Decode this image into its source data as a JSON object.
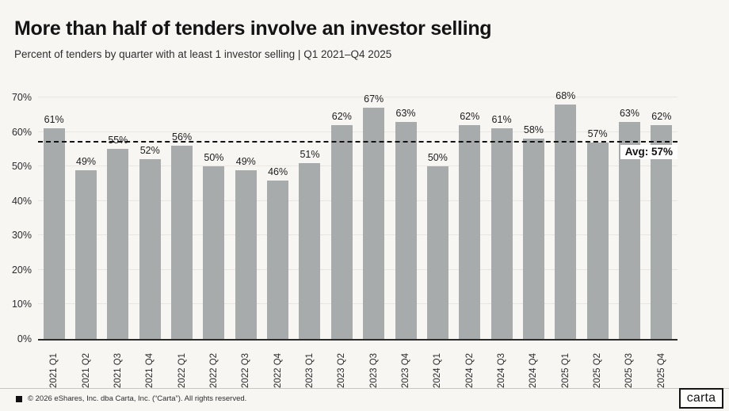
{
  "header": {
    "title": "More than half of tenders involve an investor selling",
    "subtitle": "Percent of tenders by quarter with at least 1 investor selling | Q1 2021–Q4 2025"
  },
  "chart_data": {
    "type": "bar",
    "title": "More than half of tenders involve an investor selling",
    "subtitle": "Percent of tenders by quarter with at least 1 investor selling | Q1 2021–Q4 2025",
    "categories": [
      "2021 Q1",
      "2021 Q2",
      "2021 Q3",
      "2021 Q4",
      "2022 Q1",
      "2022 Q2",
      "2022 Q3",
      "2022 Q4",
      "2023 Q1",
      "2023 Q2",
      "2023 Q3",
      "2023 Q4",
      "2024 Q1",
      "2024 Q2",
      "2024 Q3",
      "2024 Q4",
      "2025 Q1",
      "2025 Q2",
      "2025 Q3",
      "2025 Q4"
    ],
    "values": [
      61,
      49,
      55,
      52,
      56,
      50,
      49,
      46,
      51,
      62,
      67,
      63,
      50,
      62,
      61,
      58,
      68,
      57,
      63,
      62
    ],
    "value_suffix": "%",
    "xlabel": "",
    "ylabel": "",
    "ylim": [
      0,
      70
    ],
    "yticks": [
      0,
      10,
      20,
      30,
      40,
      50,
      60,
      70
    ],
    "ytick_suffix": "%",
    "grid": true,
    "legend": "none",
    "average": 57,
    "average_label": "Avg: 57%",
    "bar_color": "#a8abab",
    "avg_line_color": "#121212"
  },
  "colors": {
    "background": "#f8f6f3",
    "bar": "#a8abab",
    "gridline": "#e9e6e1",
    "axis": "#2c2c2c",
    "text": "#1a1a1a"
  },
  "footer": {
    "copyright": "© 2026 eShares, Inc. dba Carta, Inc. (“Carta”). All rights reserved.",
    "logo_text": "carta"
  }
}
